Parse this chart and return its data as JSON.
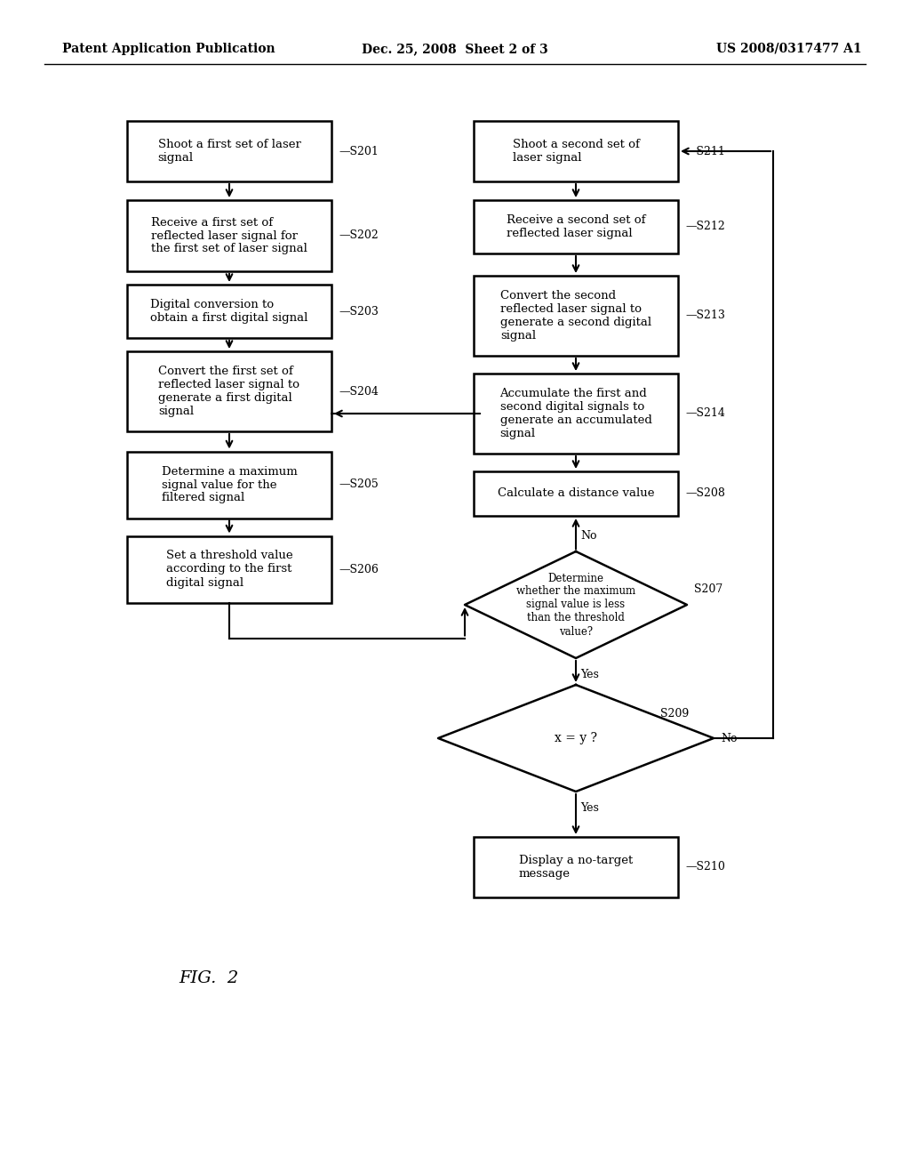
{
  "title_left": "Patent Application Publication",
  "title_center": "Dec. 25, 2008  Sheet 2 of 3",
  "title_right": "US 2008/0317477 A1",
  "fig_label": "FIG. 2",
  "background": "#ffffff"
}
